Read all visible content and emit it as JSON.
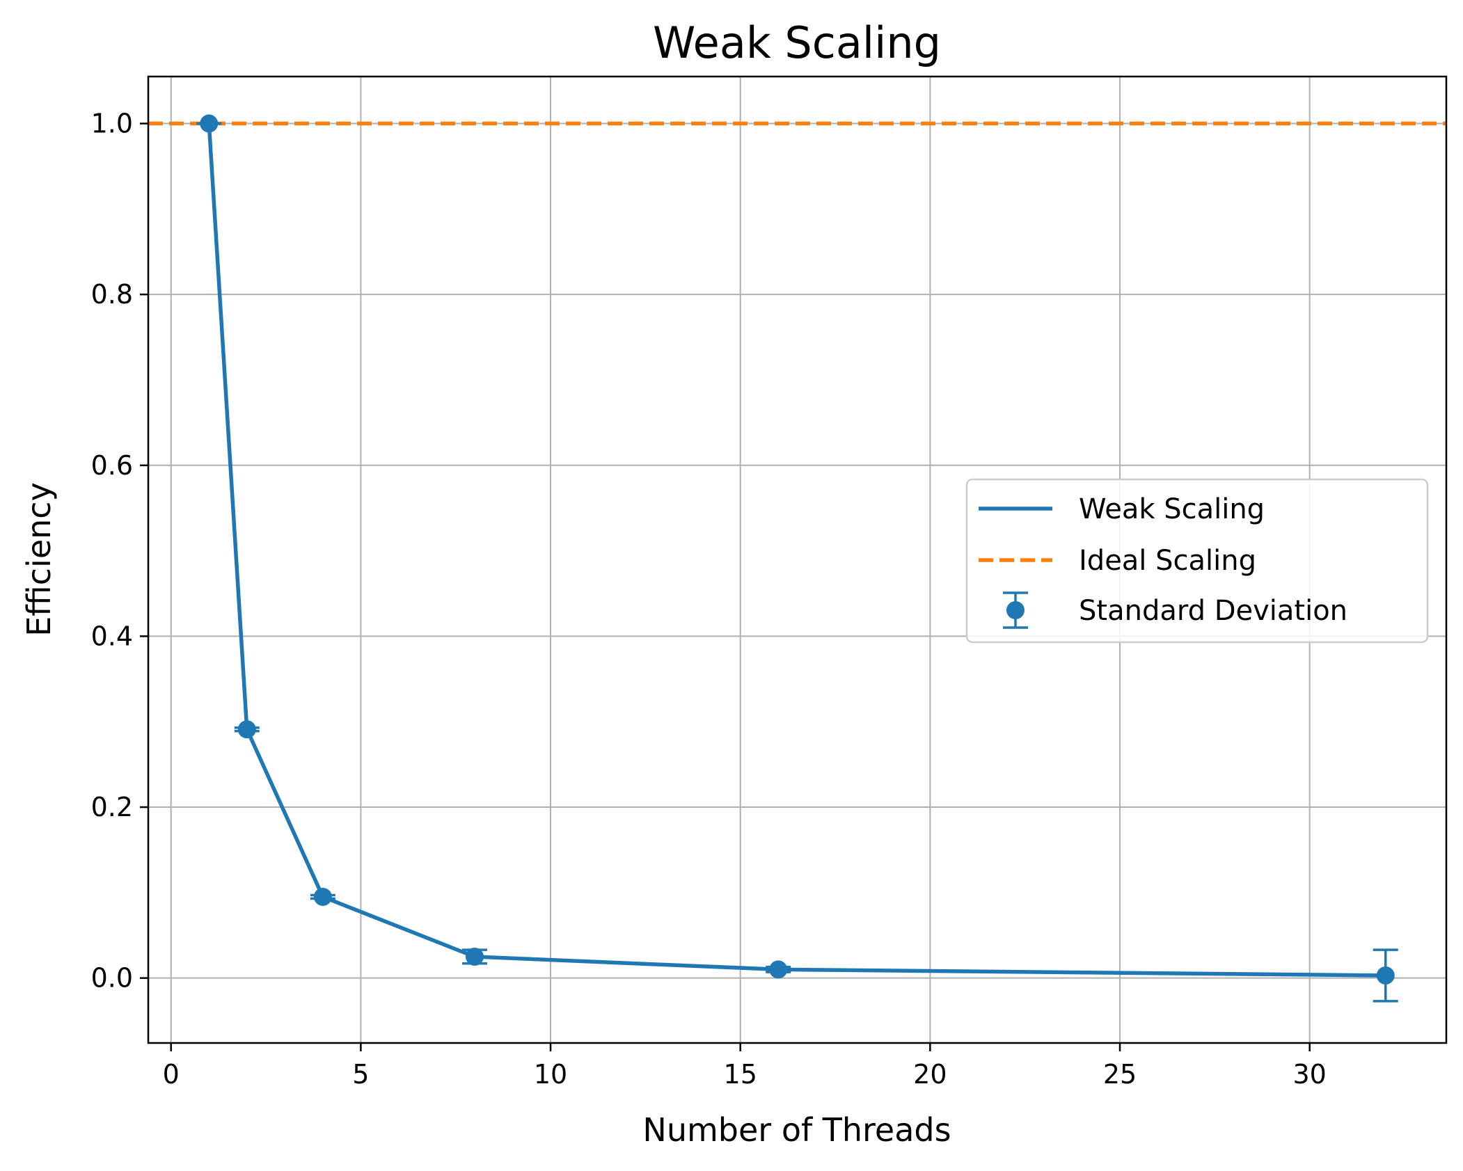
{
  "chart_data": {
    "type": "line",
    "title": "Weak Scaling",
    "xlabel": "Number of Threads",
    "ylabel": "Efficiency",
    "xlim": [
      -0.6,
      33.6
    ],
    "ylim": [
      -0.076,
      1.055
    ],
    "xticks": [
      0,
      5,
      10,
      15,
      20,
      25,
      30
    ],
    "xtick_labels": [
      "0",
      "5",
      "10",
      "15",
      "20",
      "25",
      "30"
    ],
    "yticks": [
      0.0,
      0.2,
      0.4,
      0.6,
      0.8,
      1.0
    ],
    "ytick_labels": [
      "0.0",
      "0.2",
      "0.4",
      "0.6",
      "0.8",
      "1.0"
    ],
    "grid": true,
    "legend_position": "center-right",
    "series": [
      {
        "name": "Weak Scaling",
        "kind": "line",
        "color": "#1f77b4",
        "x": [
          1,
          2,
          4,
          8,
          16,
          32
        ],
        "y": [
          1.0,
          0.291,
          0.095,
          0.025,
          0.01,
          0.003
        ]
      },
      {
        "name": "Ideal Scaling",
        "kind": "hline-dashed",
        "color": "#ff7f0e",
        "y": 1.0
      },
      {
        "name": "Standard Deviation",
        "kind": "errorbar",
        "color": "#1f77b4",
        "x": [
          1,
          2,
          4,
          8,
          16,
          32
        ],
        "y": [
          1.0,
          0.291,
          0.095,
          0.025,
          0.01,
          0.003
        ],
        "yerr": [
          0.0,
          0.002,
          0.002,
          0.008,
          0.003,
          0.03
        ]
      }
    ]
  }
}
